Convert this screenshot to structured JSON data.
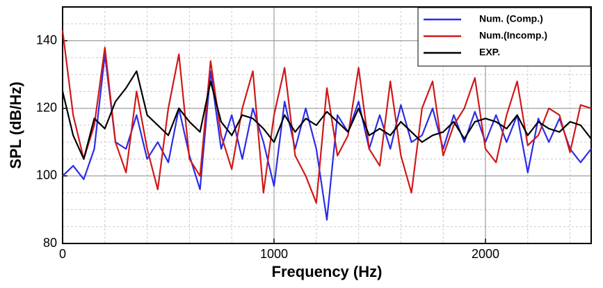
{
  "chart_data": {
    "type": "line",
    "x_label": "Frequency (Hz)",
    "y_label": "SPL (dB/Hz)",
    "xlim": [
      0,
      2500
    ],
    "ylim": [
      80,
      150
    ],
    "xticks": [
      0,
      1000,
      2000
    ],
    "yticks": [
      80,
      100,
      120,
      140
    ],
    "minor_xticks": [
      200,
      400,
      600,
      800,
      1200,
      1400,
      1600,
      1800,
      2200,
      2400
    ],
    "minor_yticks": [
      85,
      90,
      95,
      105,
      110,
      115,
      125,
      130,
      135,
      145
    ],
    "grid": true,
    "legend": "upper right",
    "x": [
      0,
      50,
      100,
      150,
      200,
      250,
      300,
      350,
      400,
      450,
      500,
      550,
      600,
      650,
      700,
      750,
      800,
      850,
      900,
      950,
      1000,
      1050,
      1100,
      1150,
      1200,
      1250,
      1300,
      1350,
      1400,
      1450,
      1500,
      1550,
      1600,
      1650,
      1700,
      1750,
      1800,
      1850,
      1900,
      1950,
      2000,
      2050,
      2100,
      2150,
      2200,
      2250,
      2300,
      2350,
      2400,
      2450,
      2500
    ],
    "series": [
      {
        "name": "Num. (Comp.)",
        "color": "#2b2bea",
        "values": [
          100,
          103,
          99,
          108,
          136,
          110,
          108,
          118,
          105,
          110,
          104,
          120,
          106,
          96,
          131,
          108,
          118,
          105,
          120,
          110,
          97,
          122,
          108,
          120,
          108,
          87,
          118,
          113,
          122,
          108,
          118,
          108,
          121,
          110,
          112,
          120,
          108,
          118,
          110,
          119,
          110,
          118,
          110,
          118,
          101,
          117,
          110,
          117,
          108,
          104,
          108
        ]
      },
      {
        "name": "Num.(Incomp.)",
        "color": "#d01818",
        "values": [
          143,
          118,
          105,
          115,
          138,
          110,
          101,
          125,
          108,
          96,
          120,
          136,
          105,
          100,
          134,
          112,
          102,
          120,
          131,
          95,
          118,
          132,
          106,
          100,
          92,
          126,
          106,
          112,
          132,
          108,
          103,
          128,
          106,
          95,
          120,
          128,
          106,
          115,
          120,
          129,
          108,
          104,
          118,
          128,
          109,
          112,
          120,
          118,
          107,
          121,
          120
        ]
      },
      {
        "name": "EXP.",
        "color": "#000000",
        "values": [
          125,
          112,
          105,
          117,
          114,
          122,
          126,
          131,
          118,
          115,
          112,
          120,
          116,
          113,
          128,
          116,
          112,
          118,
          117,
          114,
          110,
          118,
          113,
          117,
          115,
          119,
          116,
          113,
          120,
          112,
          114,
          112,
          116,
          113,
          110,
          112,
          113,
          116,
          111,
          116,
          117,
          116,
          114,
          118,
          112,
          116,
          114,
          113,
          116,
          115,
          111
        ]
      }
    ]
  }
}
